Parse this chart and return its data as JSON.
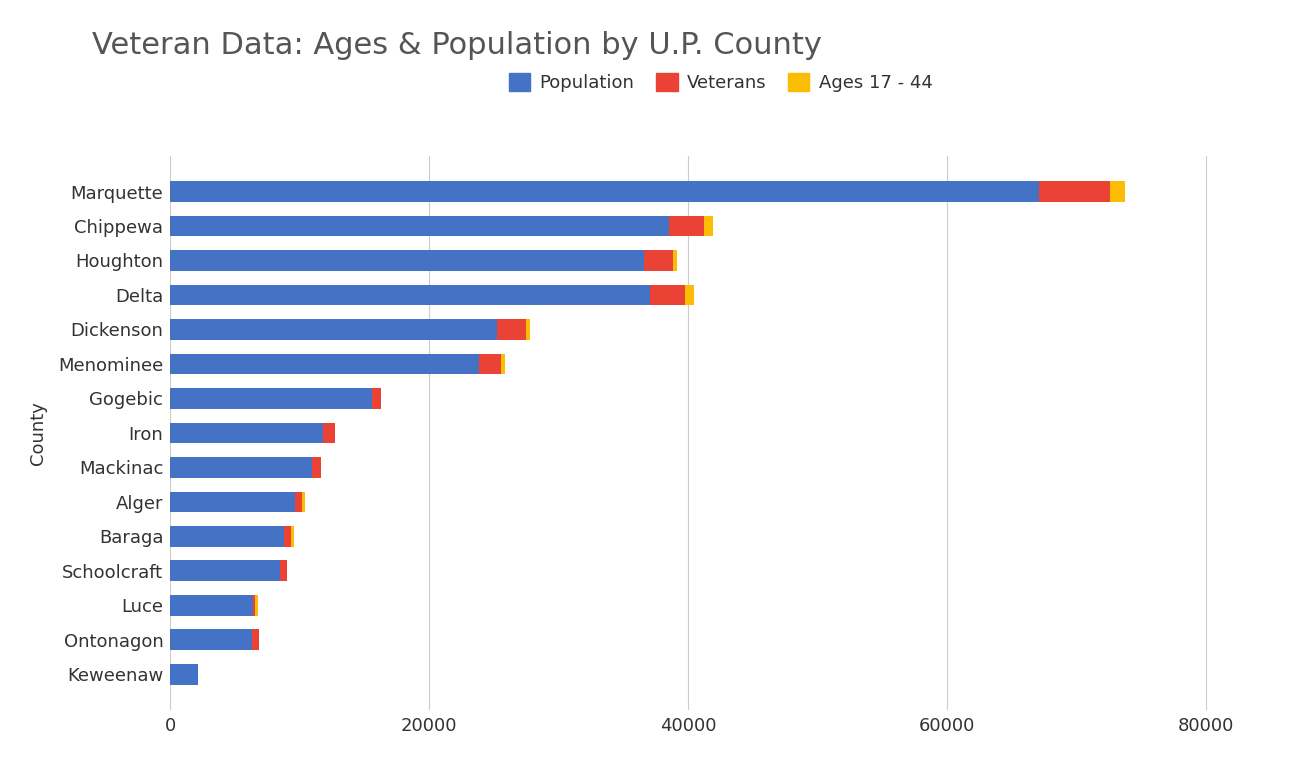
{
  "title": "Veteran Data: Ages & Population by U.P. County",
  "xlabel": "",
  "ylabel": "County",
  "counties": [
    "Marquette",
    "Chippewa",
    "Houghton",
    "Delta",
    "Dickenson",
    "Menominee",
    "Gogebic",
    "Iron",
    "Mackinac",
    "Alger",
    "Baraga",
    "Schoolcraft",
    "Luce",
    "Ontonagon",
    "Keweenaw"
  ],
  "population": [
    67077,
    38543,
    36628,
    37069,
    25269,
    23872,
    15607,
    11817,
    10922,
    9601,
    8746,
    8485,
    6364,
    6328,
    2156
  ],
  "veterans": [
    5500,
    2700,
    2200,
    2700,
    2200,
    1700,
    700,
    900,
    700,
    600,
    600,
    550,
    200,
    500,
    0
  ],
  "ages_17_44": [
    1200,
    700,
    300,
    700,
    300,
    300,
    0,
    0,
    0,
    200,
    200,
    0,
    200,
    0,
    0
  ],
  "bar_color_population": "#4472C4",
  "bar_color_veterans": "#EA4335",
  "bar_color_ages": "#FBBC04",
  "background_color": "#FFFFFF",
  "title_fontsize": 22,
  "axis_label_fontsize": 13,
  "tick_fontsize": 13,
  "legend_fontsize": 13,
  "xlim": [
    0,
    85000
  ],
  "xticks": [
    0,
    20000,
    40000,
    60000,
    80000
  ],
  "xtick_labels": [
    "0",
    "20000",
    "40000",
    "60000",
    "80000"
  ],
  "title_color": "#555555",
  "tick_color": "#333333",
  "grid_color": "#CCCCCC"
}
